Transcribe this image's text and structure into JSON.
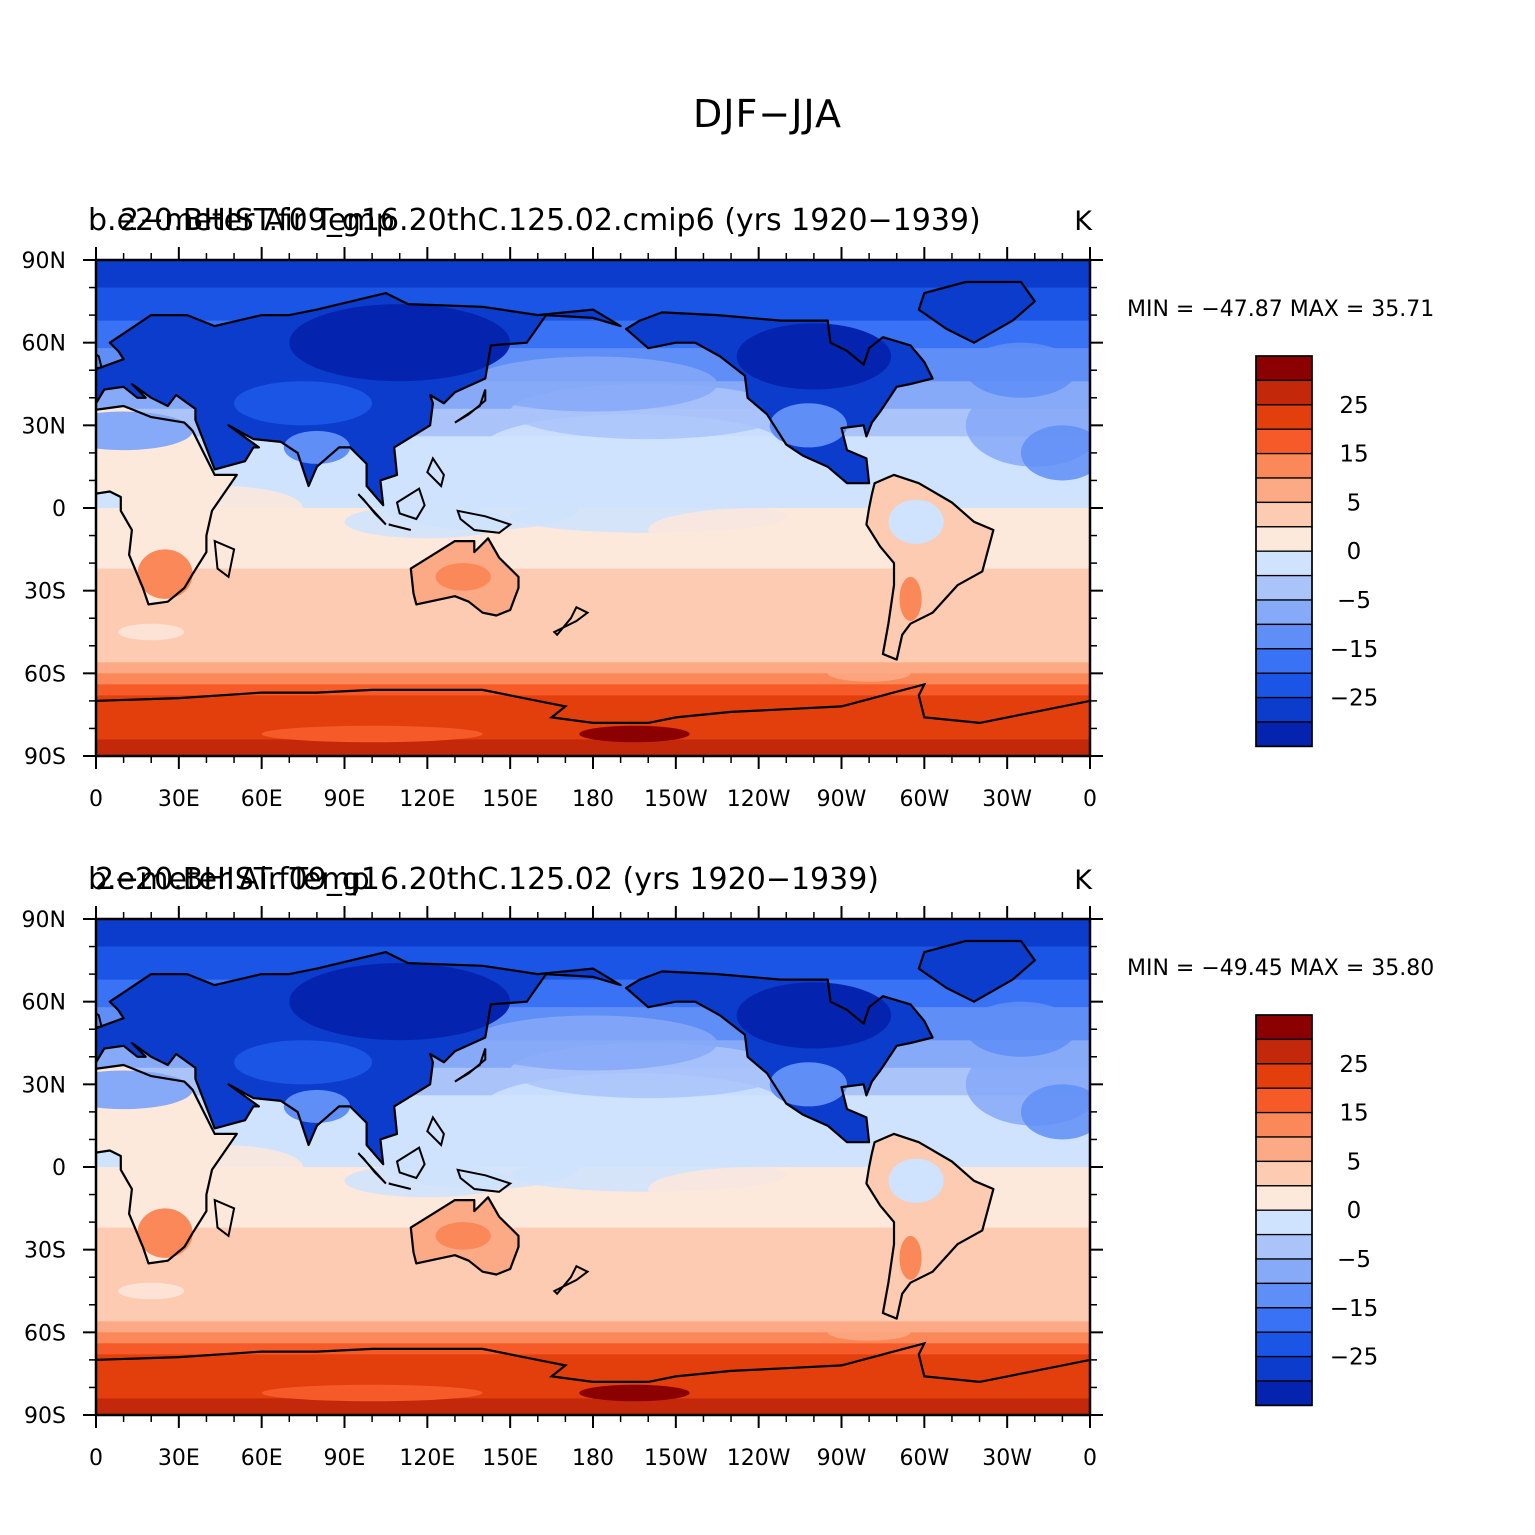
{
  "main_title": "DJF−JJA",
  "colors": {
    "scale": [
      "#00008b",
      "#0424b0",
      "#0c3ccc",
      "#1a55e6",
      "#3a72f5",
      "#5f8ef6",
      "#86a9f8",
      "#aac4fa",
      "#cfe3fe",
      "#fde8dc",
      "#fccbb2",
      "#fca985",
      "#fb8858",
      "#f55a28",
      "#e33f0c",
      "#c3280a",
      "#8b0000"
    ],
    "coast": "#000000"
  },
  "colorbar_labels": [
    "25",
    "15",
    "5",
    "0",
    "−5",
    "−15",
    "−25"
  ],
  "x_ticks": [
    "0",
    "30E",
    "60E",
    "90E",
    "120E",
    "150E",
    "180",
    "150W",
    "120W",
    "90W",
    "60W",
    "30W",
    "0"
  ],
  "y_ticks": [
    "90N",
    "60N",
    "30N",
    "0",
    "30S",
    "60S",
    "90S"
  ],
  "panels": [
    {
      "left_title": "b.e20.BHIST.f09_g16.20thC.125.02.cmip6 (yrs 1920−1939)",
      "overlap_title": "2−meter Air Temp",
      "units": "K",
      "min_max": "MIN = −47.87  MAX =   35.71"
    },
    {
      "left_title": "b.e20.BHIST.f09_g16.20thC.125.02 (yrs 1920−1939)",
      "overlap_title": "2−meter Air Temp",
      "units": "K",
      "min_max": "MIN = −49.45  MAX =   35.80"
    }
  ]
}
